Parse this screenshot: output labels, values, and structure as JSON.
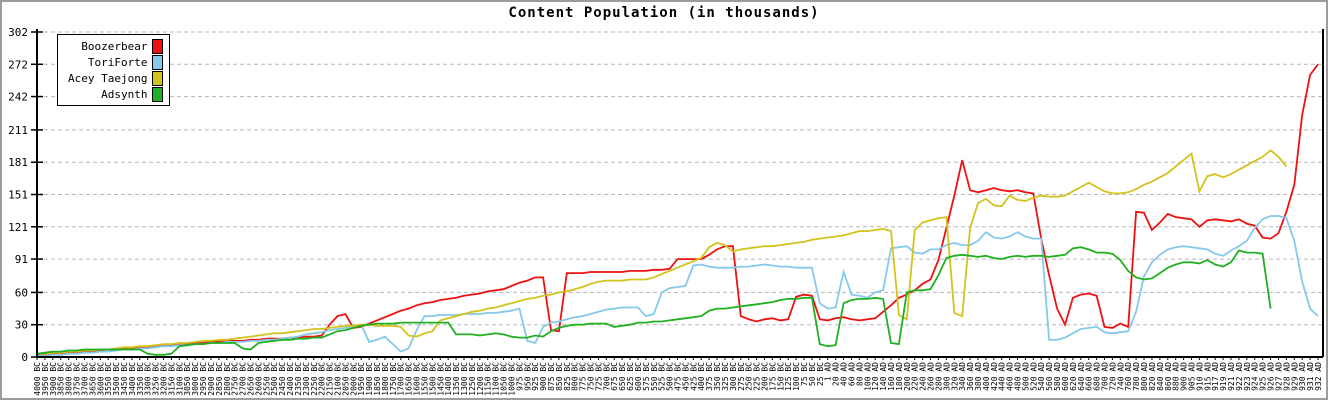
{
  "window": {
    "background": "#ffffff",
    "border_color": "#9c9c9c"
  },
  "title": "Content Population (in thousands)",
  "axes": {
    "axis_color": "#000000",
    "grid_color": "#b8b8b8",
    "tick_label_color": "#000000",
    "y_ticks": [
      0,
      30,
      60,
      91,
      121,
      151,
      181,
      211,
      242,
      272,
      302
    ],
    "ylim": [
      0,
      302
    ]
  },
  "legend": {
    "position": "top-left"
  },
  "chart_data": {
    "type": "line",
    "title": "Content Population (in thousands)",
    "xlabel": "",
    "ylabel": "",
    "ylim": [
      0,
      302
    ],
    "y_ticks": [
      0,
      30,
      60,
      91,
      121,
      151,
      181,
      211,
      242,
      272,
      302
    ],
    "grid": "horizontal-dashed",
    "legend_position": "top-left",
    "categories": [
      "4000 BC",
      "3950 BC",
      "3900 BC",
      "3850 BC",
      "3800 BC",
      "3750 BC",
      "3700 BC",
      "3650 BC",
      "3600 BC",
      "3550 BC",
      "3500 BC",
      "3450 BC",
      "3400 BC",
      "3350 BC",
      "3300 BC",
      "3250 BC",
      "3200 BC",
      "3150 BC",
      "3100 BC",
      "3050 BC",
      "3000 BC",
      "2950 BC",
      "2900 BC",
      "2850 BC",
      "2800 BC",
      "2750 BC",
      "2700 BC",
      "2650 BC",
      "2600 BC",
      "2550 BC",
      "2500 BC",
      "2450 BC",
      "2400 BC",
      "2350 BC",
      "2300 BC",
      "2250 BC",
      "2200 BC",
      "2150 BC",
      "2100 BC",
      "2050 BC",
      "2000 BC",
      "1950 BC",
      "1900 BC",
      "1850 BC",
      "1800 BC",
      "1750 BC",
      "1700 BC",
      "1650 BC",
      "1600 BC",
      "1550 BC",
      "1500 BC",
      "1450 BC",
      "1400 BC",
      "1350 BC",
      "1300 BC",
      "1250 BC",
      "1200 BC",
      "1150 BC",
      "1100 BC",
      "1050 BC",
      "1000 BC",
      "975 BC",
      "950 BC",
      "925 BC",
      "900 BC",
      "875 BC",
      "850 BC",
      "825 BC",
      "800 BC",
      "775 BC",
      "750 BC",
      "725 BC",
      "700 BC",
      "675 BC",
      "650 BC",
      "625 BC",
      "600 BC",
      "575 BC",
      "550 BC",
      "525 BC",
      "500 BC",
      "475 BC",
      "450 BC",
      "425 BC",
      "400 BC",
      "375 BC",
      "350 BC",
      "325 BC",
      "300 BC",
      "275 BC",
      "250 BC",
      "225 BC",
      "200 BC",
      "175 BC",
      "150 BC",
      "125 BC",
      "100 BC",
      "75 BC",
      "50 BC",
      "25 BC",
      "1 AD",
      "20 AD",
      "40 AD",
      "60 AD",
      "80 AD",
      "100 AD",
      "120 AD",
      "140 AD",
      "160 AD",
      "180 AD",
      "200 AD",
      "220 AD",
      "240 AD",
      "260 AD",
      "280 AD",
      "300 AD",
      "320 AD",
      "340 AD",
      "360 AD",
      "380 AD",
      "400 AD",
      "420 AD",
      "440 AD",
      "460 AD",
      "480 AD",
      "500 AD",
      "520 AD",
      "540 AD",
      "560 AD",
      "580 AD",
      "600 AD",
      "620 AD",
      "640 AD",
      "660 AD",
      "680 AD",
      "700 AD",
      "720 AD",
      "740 AD",
      "760 AD",
      "780 AD",
      "800 AD",
      "820 AD",
      "840 AD",
      "860 AD",
      "880 AD",
      "900 AD",
      "905 AD",
      "910 AD",
      "915 AD",
      "917 AD",
      "919 AD",
      "921 AD",
      "922 AD",
      "923 AD",
      "924 AD",
      "925 AD",
      "926 AD",
      "927 AD",
      "928 AD",
      "929 AD",
      "930 AD",
      "931 AD",
      "932 AD"
    ],
    "series": [
      {
        "name": "Boozerbear",
        "color": "#ee1111",
        "values": [
          2,
          2,
          3,
          3,
          4,
          4,
          5,
          5,
          6,
          7,
          7,
          8,
          8,
          9,
          9,
          10,
          11,
          11,
          12,
          12,
          13,
          13,
          14,
          14,
          15,
          15,
          15,
          16,
          16,
          17,
          17,
          17,
          18,
          18,
          19,
          19,
          20,
          30,
          38,
          40,
          27,
          28,
          31,
          34,
          37,
          40,
          43,
          45,
          48,
          50,
          51,
          53,
          54,
          55,
          57,
          58,
          59,
          61,
          62,
          63,
          66,
          69,
          71,
          74,
          74,
          25,
          24,
          78,
          78,
          78,
          79,
          79,
          79,
          79,
          79,
          80,
          80,
          80,
          81,
          81,
          82,
          91,
          91,
          91,
          91,
          95,
          100,
          103,
          103,
          38,
          35,
          33,
          35,
          36,
          34,
          35,
          56,
          58,
          57,
          35,
          34,
          36,
          37,
          35,
          34,
          35,
          36,
          42,
          48,
          55,
          58,
          62,
          68,
          72,
          90,
          120,
          150,
          183,
          155,
          153,
          155,
          157,
          155,
          154,
          155,
          153,
          152,
          110,
          76,
          45,
          30,
          55,
          58,
          59,
          57,
          28,
          27,
          31,
          28,
          135,
          134,
          118,
          125,
          133,
          130,
          129,
          128,
          121,
          127,
          128,
          127,
          126,
          128,
          124,
          122,
          111,
          110,
          115,
          135,
          160,
          225,
          262,
          272
        ]
      },
      {
        "name": "ToriForte",
        "color": "#85c9ec",
        "values": [
          1,
          1,
          2,
          2,
          3,
          3,
          4,
          4,
          5,
          5,
          6,
          7,
          7,
          8,
          8,
          9,
          10,
          10,
          11,
          11,
          12,
          12,
          13,
          13,
          14,
          14,
          14,
          15,
          15,
          16,
          16,
          17,
          18,
          19,
          21,
          22,
          23,
          25,
          26,
          27,
          28,
          30,
          14,
          16,
          19,
          12,
          5,
          8,
          25,
          38,
          38,
          39,
          39,
          39,
          40,
          40,
          40,
          41,
          41,
          42,
          43,
          45,
          15,
          13,
          28,
          32,
          33,
          35,
          37,
          38,
          40,
          42,
          44,
          45,
          46,
          46,
          46,
          38,
          40,
          60,
          64,
          65,
          66,
          85,
          86,
          84,
          83,
          83,
          83,
          84,
          84,
          85,
          86,
          85,
          84,
          84,
          83,
          83,
          83,
          50,
          45,
          46,
          79,
          58,
          57,
          55,
          60,
          62,
          101,
          102,
          103,
          97,
          96,
          100,
          100,
          104,
          106,
          104,
          104,
          108,
          116,
          111,
          110,
          112,
          116,
          112,
          110,
          110,
          16,
          16,
          18,
          22,
          26,
          27,
          28,
          23,
          22,
          23,
          24,
          42,
          75,
          88,
          95,
          100,
          102,
          103,
          102,
          101,
          100,
          96,
          94,
          99,
          103,
          108,
          120,
          128,
          131,
          131,
          129,
          108,
          70,
          45,
          38
        ]
      },
      {
        "name": "Acey Taejong",
        "color": "#d2c31d",
        "values": [
          3,
          3,
          4,
          4,
          5,
          5,
          6,
          6,
          7,
          7,
          8,
          9,
          9,
          10,
          10,
          11,
          12,
          12,
          13,
          13,
          14,
          15,
          15,
          16,
          16,
          17,
          18,
          19,
          20,
          21,
          22,
          22,
          23,
          24,
          25,
          26,
          26,
          27,
          28,
          29,
          29,
          30,
          30,
          29,
          29,
          29,
          28,
          20,
          19,
          22,
          24,
          34,
          36,
          38,
          40,
          42,
          43,
          45,
          46,
          48,
          50,
          52,
          54,
          55,
          57,
          58,
          60,
          61,
          63,
          65,
          68,
          70,
          71,
          71,
          71,
          72,
          72,
          72,
          74,
          77,
          80,
          83,
          86,
          89,
          92,
          102,
          106,
          104,
          98,
          100,
          101,
          102,
          103,
          103,
          104,
          105,
          106,
          107,
          109,
          110,
          111,
          112,
          113,
          115,
          117,
          117,
          118,
          119,
          117,
          39,
          35,
          118,
          125,
          127,
          129,
          130,
          41,
          38,
          120,
          143,
          147,
          141,
          140,
          150,
          146,
          145,
          148,
          150,
          149,
          149,
          150,
          154,
          158,
          162,
          158,
          154,
          152,
          152,
          153,
          156,
          160,
          163,
          167,
          171,
          177,
          183,
          189,
          154,
          168,
          170,
          167,
          170,
          174,
          178,
          182,
          186,
          192,
          186,
          177,
          null,
          null,
          null,
          null
        ]
      },
      {
        "name": "Adsynth",
        "color": "#21b021",
        "values": [
          3,
          4,
          5,
          5,
          6,
          6,
          7,
          7,
          7,
          7,
          7,
          7,
          7,
          7,
          3,
          2,
          2,
          3,
          10,
          11,
          12,
          12,
          13,
          13,
          13,
          13,
          8,
          7,
          13,
          14,
          15,
          16,
          16,
          17,
          17,
          18,
          18,
          21,
          24,
          25,
          27,
          29,
          30,
          31,
          31,
          31,
          32,
          32,
          32,
          32,
          32,
          32,
          32,
          21,
          21,
          21,
          20,
          21,
          22,
          21,
          19,
          18,
          18,
          20,
          19,
          24,
          27,
          29,
          30,
          30,
          31,
          31,
          31,
          28,
          29,
          30,
          32,
          32,
          33,
          33,
          34,
          35,
          36,
          37,
          38,
          43,
          45,
          45,
          46,
          47,
          48,
          49,
          50,
          51,
          53,
          54,
          54,
          55,
          55,
          12,
          10,
          11,
          50,
          53,
          54,
          54,
          55,
          54,
          13,
          12,
          60,
          62,
          62,
          63,
          76,
          92,
          94,
          95,
          94,
          93,
          94,
          92,
          91,
          93,
          94,
          93,
          94,
          94,
          93,
          94,
          95,
          101,
          102,
          100,
          97,
          97,
          96,
          90,
          80,
          74,
          72,
          73,
          78,
          83,
          86,
          88,
          88,
          87,
          90,
          86,
          84,
          88,
          99,
          97,
          97,
          96,
          45,
          null,
          null,
          null,
          null,
          null,
          null
        ]
      }
    ]
  }
}
